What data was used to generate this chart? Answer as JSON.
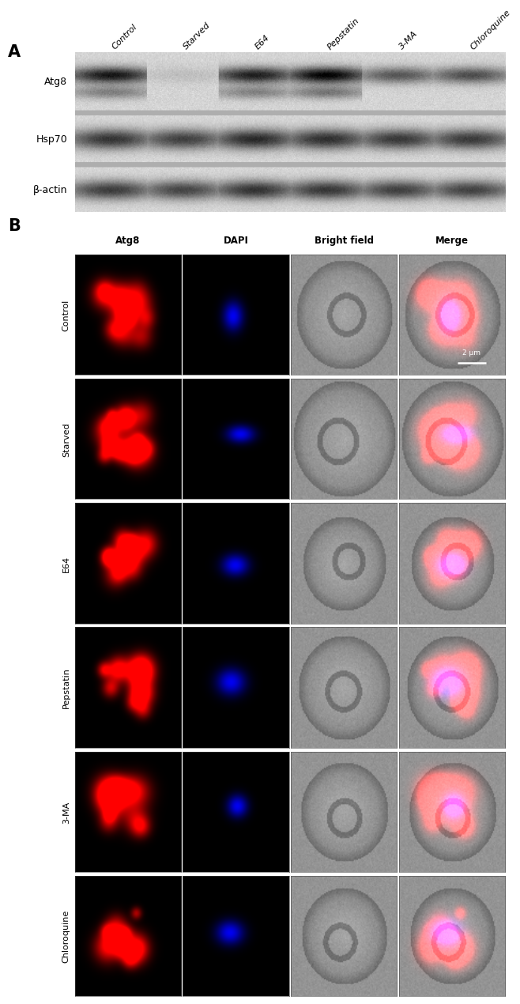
{
  "fig_width": 6.5,
  "fig_height": 12.25,
  "panel_a_label": "A",
  "panel_b_label": "B",
  "wb_columns": [
    "Control",
    "Starved",
    "E64",
    "Pepstatin",
    "3-MA",
    "Chloroquine"
  ],
  "wb_rows": [
    "Atg8",
    "Hsp70",
    "β-actin"
  ],
  "microscopy_rows": [
    "Control",
    "Starved",
    "E64",
    "Pepstatin",
    "3-MA",
    "Chloroquine"
  ],
  "microscopy_cols": [
    "Atg8",
    "DAPI",
    "Bright field",
    "Merge"
  ],
  "scale_bar_text": "2 μm",
  "background_color": "#ffffff"
}
